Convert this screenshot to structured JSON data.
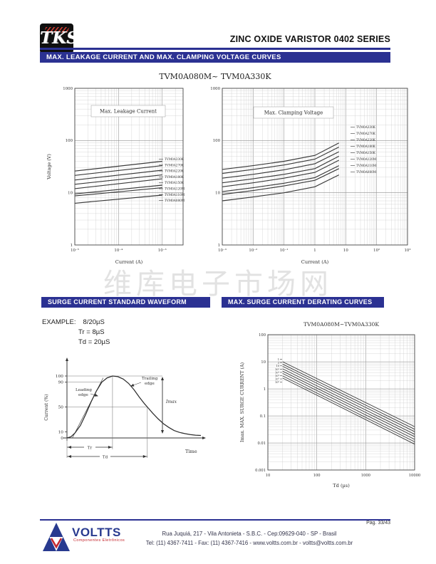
{
  "header": {
    "logo_text": "TKS",
    "series_title": "ZINC OXIDE VARISTOR 0402 SERIES",
    "banner1": "MAX. LEAKAGE CURRENT AND MAX. CLAMPING VOLTAGE CURVES"
  },
  "top_charts_title": "TVM0A080M~ TVM0A330K",
  "watermark": "维库电子市场网",
  "banners": {
    "surge_waveform": "SURGE CURRENT STANDARD WAVEFORM",
    "derating": "MAX. SURGE CURRENT DERATING CURVES"
  },
  "example": {
    "label": "EXAMPLE:",
    "waveform": "8/20µS",
    "tr": "Tr = 8µS",
    "td": "Td = 20µS"
  },
  "footer": {
    "brand": "VOLTTS",
    "brand_sub": "Componentes Eletrônicos",
    "address": "Rua Juquiá, 217   -   Vila Antonieta   -   S.B.C.   -   Cep:09629-040   -   SP - Brasil",
    "contact": "Tel: (11) 4367-7411   -   Fax: (11) 4367-7416   -   www.voltts.com.br   -   voltts@voltts.com.br",
    "page": "Pág. 33/43"
  },
  "colors": {
    "navy": "#2b3192",
    "brand_blue": "#283a8f",
    "brand_red": "#c4272e",
    "chart_line": "#3a3a3a",
    "grid_minor": "#c9c9c9",
    "grid_major": "#8f8f8f",
    "watermark": "#d9d9d9"
  },
  "chart_data": [
    {
      "id": "leakage",
      "type": "line",
      "title": "Max. Leakage Current",
      "xlabel": "Current    (A)",
      "ylabel": "Voltage   (V)",
      "xscale": "log",
      "yscale": "log",
      "xlim": [
        1e-05,
        0.003
      ],
      "ylim": [
        1,
        1000
      ],
      "xticks": [
        1e-05,
        0.0001,
        0.001
      ],
      "xtick_labels": [
        "10⁻⁵",
        "10⁻⁴",
        "10⁻³"
      ],
      "yticks": [
        1000,
        100,
        10,
        1
      ],
      "ytick_labels": [
        "1000",
        "100",
        "10",
        "1"
      ],
      "series": [
        {
          "name": "TVM0A330K",
          "x": [
            1e-05,
            0.001
          ],
          "y": [
            26,
            40
          ]
        },
        {
          "name": "TVM0A270K",
          "x": [
            1e-05,
            0.001
          ],
          "y": [
            21.5,
            33
          ]
        },
        {
          "name": "TVM0A220K",
          "x": [
            1e-05,
            0.001
          ],
          "y": [
            17.5,
            27
          ]
        },
        {
          "name": "TVM0A180K",
          "x": [
            1e-05,
            0.001
          ],
          "y": [
            14.5,
            22
          ]
        },
        {
          "name": "TVM0A150K",
          "x": [
            1e-05,
            0.001
          ],
          "y": [
            12,
            18.5
          ]
        },
        {
          "name": "TVM0A120M",
          "x": [
            1e-05,
            0.001
          ],
          "y": [
            9.5,
            14
          ]
        },
        {
          "name": "TVM0A110M",
          "x": [
            1e-05,
            0.001
          ],
          "y": [
            8.7,
            12.5
          ]
        },
        {
          "name": "TVM0A080M",
          "x": [
            1e-05,
            0.001
          ],
          "y": [
            6.3,
            9
          ]
        }
      ]
    },
    {
      "id": "clamping",
      "type": "line",
      "title": "Max. Clamping Voltage",
      "xlabel": "Current    (A)",
      "ylabel": "",
      "xscale": "log",
      "yscale": "log",
      "xlim": [
        0.001,
        1000
      ],
      "ylim": [
        1,
        1000
      ],
      "xticks": [
        0.001,
        0.01,
        0.1,
        1,
        10,
        100,
        1000
      ],
      "xtick_labels": [
        "10⁻³",
        "10⁻²",
        "10⁻¹",
        "1",
        "10",
        "10²",
        "10³"
      ],
      "yticks": [
        1000,
        100,
        10,
        1
      ],
      "ytick_labels": [
        "1000",
        "100",
        "10",
        "1"
      ],
      "series": [
        {
          "name": "TVM0A330K",
          "x": [
            0.001,
            0.01,
            0.1,
            1,
            6
          ],
          "y": [
            28,
            33,
            40,
            52,
            90
          ]
        },
        {
          "name": "TVM0A270K",
          "x": [
            0.001,
            0.01,
            0.1,
            1,
            6
          ],
          "y": [
            23.5,
            28,
            34,
            44,
            75
          ]
        },
        {
          "name": "TVM0A220K",
          "x": [
            0.001,
            0.01,
            0.1,
            1,
            6
          ],
          "y": [
            19,
            22.5,
            27.5,
            36,
            61
          ]
        },
        {
          "name": "TVM0A180K",
          "x": [
            0.001,
            0.01,
            0.1,
            1,
            6
          ],
          "y": [
            15.5,
            18.5,
            22.5,
            29,
            50
          ]
        },
        {
          "name": "TVM0A150K",
          "x": [
            0.001,
            0.01,
            0.1,
            1,
            6
          ],
          "y": [
            13,
            15.5,
            19,
            24.5,
            42
          ]
        },
        {
          "name": "TVM0A120M",
          "x": [
            0.001,
            0.01,
            0.1,
            1,
            6
          ],
          "y": [
            10.5,
            12.5,
            15.2,
            19.5,
            33
          ]
        },
        {
          "name": "TVM0A110M",
          "x": [
            0.001,
            0.01,
            0.1,
            1,
            6
          ],
          "y": [
            9.3,
            11,
            13.5,
            17.3,
            29
          ]
        },
        {
          "name": "TVM0A080M",
          "x": [
            0.001,
            0.01,
            0.1,
            1,
            6
          ],
          "y": [
            7,
            8.3,
            10,
            13,
            22
          ]
        }
      ]
    },
    {
      "id": "waveform",
      "type": "line",
      "title": "",
      "xlabel": "Time",
      "ylabel": "Current (%)",
      "yticks": [
        0,
        10,
        50,
        90,
        100
      ],
      "ytick_labels": [
        "0",
        "10",
        "50",
        "90",
        "100"
      ],
      "tr_x": 34,
      "td_x": 60,
      "labels": {
        "leading": "Leading edge",
        "trailing": "Trailing edge",
        "imax": "Imax",
        "tr": "Tr",
        "td": "Td"
      },
      "curve": [
        [
          0,
          0
        ],
        [
          3,
          2
        ],
        [
          6,
          8
        ],
        [
          10,
          20
        ],
        [
          14,
          38
        ],
        [
          18,
          58
        ],
        [
          22,
          76
        ],
        [
          26,
          90
        ],
        [
          30,
          97
        ],
        [
          34,
          100
        ],
        [
          38,
          99
        ],
        [
          42,
          95
        ],
        [
          46,
          88
        ],
        [
          50,
          78
        ],
        [
          54,
          66
        ],
        [
          58,
          55
        ],
        [
          60,
          50
        ],
        [
          64,
          40
        ],
        [
          68,
          31
        ],
        [
          72,
          23
        ],
        [
          76,
          17
        ],
        [
          80,
          12
        ],
        [
          84,
          9
        ],
        [
          88,
          7
        ],
        [
          92,
          5.5
        ],
        [
          96,
          4.5
        ],
        [
          100,
          4
        ]
      ],
      "leading_line": [
        [
          4,
          0
        ],
        [
          27,
          97
        ]
      ]
    },
    {
      "id": "derating",
      "type": "line",
      "title": "TVM0A080M~TVM0A330K",
      "xlabel": "Td    (µs)",
      "ylabel": "Imax. MAX. SURGE CURRENT (A)",
      "xscale": "log",
      "yscale": "log",
      "xlim": [
        10,
        10000
      ],
      "ylim": [
        0.001,
        100
      ],
      "xticks": [
        10,
        100,
        1000,
        10000
      ],
      "xtick_labels": [
        "10",
        "100",
        "1000",
        "10000"
      ],
      "yticks": [
        100,
        10,
        1,
        0.1,
        0.01,
        0.001
      ],
      "ytick_labels": [
        "100",
        "10",
        "1",
        "0.1",
        "0.01",
        "0.001"
      ],
      "series": [
        {
          "name": "1",
          "x": [
            20,
            10000
          ],
          "y": [
            10,
            0.04
          ]
        },
        {
          "name": "2",
          "x": [
            20,
            10000
          ],
          "y": [
            8.2,
            0.032
          ]
        },
        {
          "name": "10",
          "x": [
            20,
            10000
          ],
          "y": [
            6.8,
            0.026
          ]
        },
        {
          "name": "10²",
          "x": [
            20,
            10000
          ],
          "y": [
            5.5,
            0.021
          ]
        },
        {
          "name": "10³",
          "x": [
            20,
            10000
          ],
          "y": [
            4.5,
            0.017
          ]
        },
        {
          "name": "10⁴",
          "x": [
            20,
            10000
          ],
          "y": [
            3.7,
            0.0135
          ]
        },
        {
          "name": "10⁵",
          "x": [
            20,
            10000
          ],
          "y": [
            3,
            0.011
          ]
        },
        {
          "name": "10⁶",
          "x": [
            20,
            10000
          ],
          "y": [
            2.5,
            0.009
          ]
        }
      ]
    }
  ]
}
